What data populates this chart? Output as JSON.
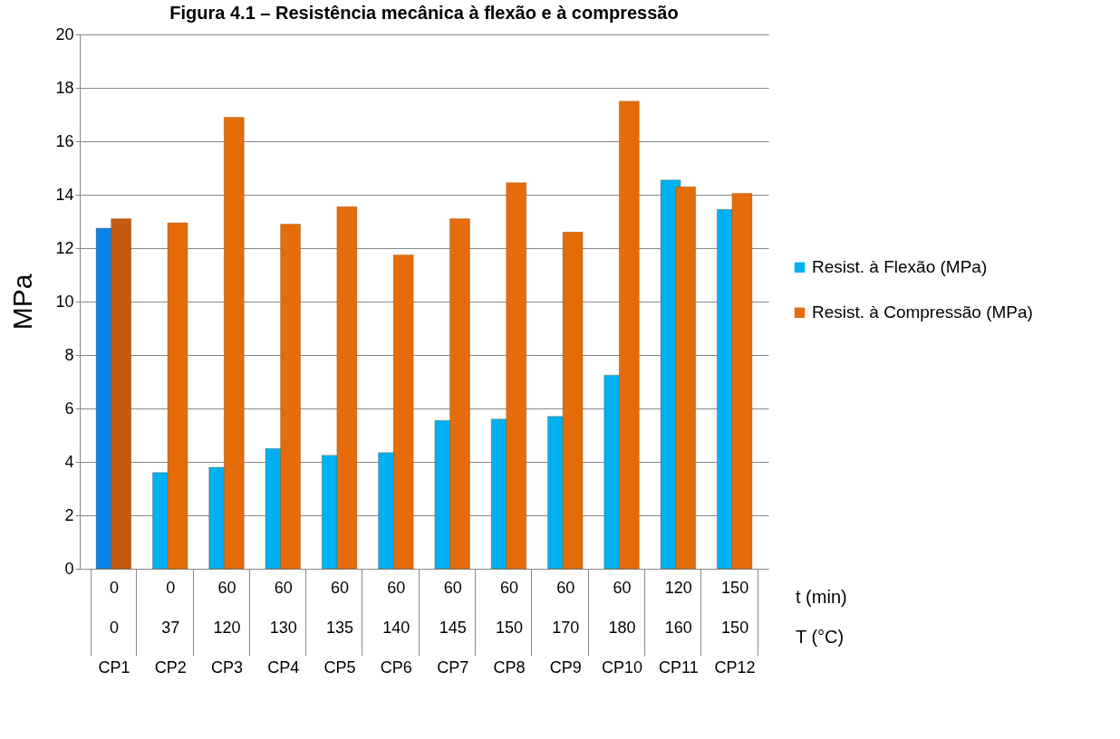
{
  "chart_data": {
    "type": "bar",
    "title": "Figura 4.1 – Resistência mecânica à flexão e à compressão",
    "ylabel": "MPa",
    "categories": [
      "0\n0\nCP1",
      "0\n37\nCP2",
      "60\n120\nCP3",
      "60\n130\nCP4",
      "60\n135\nCP5",
      "60\n140\nCP6",
      "60\n145\nCP7",
      "60\n150\nCP8",
      "60\n170\nCP9",
      "60\n180\nCP10",
      "120\n160\nCP11",
      "150\n150\nCP12"
    ],
    "series": [
      {
        "name": "Resist. à Flexão (MPa)",
        "color": "#00b0f0",
        "colors": [
          "#0a84e8",
          "#00b0f0",
          "#00b0f0",
          "#00b0f0",
          "#00b0f0",
          "#00b0f0",
          "#00b0f0",
          "#00b0f0",
          "#00b0f0",
          "#00b0f0",
          "#00b0f0",
          "#00b0f0"
        ],
        "values": [
          12.75,
          3.6,
          3.8,
          4.5,
          4.25,
          4.35,
          5.55,
          5.6,
          5.7,
          7.25,
          14.55,
          13.45
        ]
      },
      {
        "name": "Resist. à Compressão (MPa)",
        "color": "#e46c0a",
        "colors": [
          "#c55a11",
          "#e46c0a",
          "#e46c0a",
          "#e46c0a",
          "#e46c0a",
          "#e46c0a",
          "#e46c0a",
          "#e46c0a",
          "#e46c0a",
          "#e46c0a",
          "#e46c0a",
          "#e46c0a"
        ],
        "values": [
          13.1,
          12.95,
          16.9,
          12.9,
          13.55,
          11.75,
          13.1,
          14.45,
          12.6,
          17.5,
          14.3,
          14.05
        ]
      }
    ],
    "ylim": [
      0,
      20
    ],
    "yticks": [
      0,
      2,
      4,
      6,
      8,
      10,
      12,
      14,
      16,
      18,
      20
    ],
    "grid": "y",
    "legend": "right",
    "annotations": [
      "t (min)",
      "T (°C)"
    ]
  }
}
